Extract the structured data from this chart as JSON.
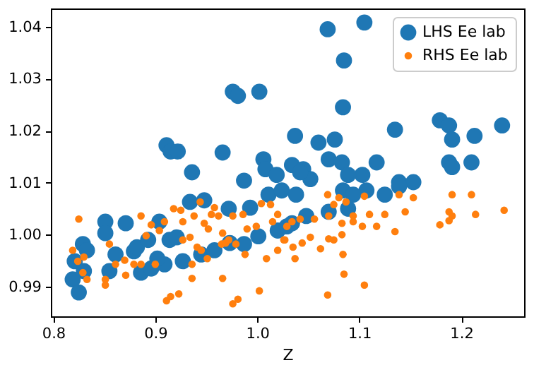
{
  "chart_data": {
    "type": "scatter",
    "xlabel": "Z",
    "xlim": [
      0.7976,
      1.2616
    ],
    "ylim": [
      0.9843,
      1.0435
    ],
    "xticks": [
      0.8,
      0.9,
      {
        "value": 1.0,
        "label": "1.0"
      },
      1.1,
      1.2
    ],
    "yticks": [
      0.99,
      {
        "value": 1.0,
        "label": "1.00"
      },
      1.01,
      1.02,
      1.03,
      1.04
    ],
    "legend": "top right",
    "marker": "circle",
    "grid": false,
    "series": [
      {
        "name": "LHS Ee lab",
        "color": "#1f77b4",
        "x": [
          1.069,
          1.105,
          1.085,
          0.976,
          0.981,
          1.002,
          1.084,
          0.911,
          0.915,
          0.922,
          0.936,
          0.966,
          0.987,
          1.006,
          1.008,
          1.019,
          1.037,
          1.06,
          1.076,
          1.07,
          1.083,
          1.135,
          1.179,
          1.188,
          1.191,
          1.213,
          1.24,
          1.188,
          1.191,
          1.21,
          1.117,
          1.103,
          1.089,
          1.034,
          1.045,
          1.052,
          1.139,
          1.153,
          0.948,
          0.934,
          0.972,
          0.993,
          1.011,
          1.024,
          0.851,
          0.851,
          0.871,
          0.904,
          0.914,
          0.921,
          0.829,
          0.833,
          0.821,
          0.83,
          0.819,
          0.825,
          0.855,
          0.861,
          0.879,
          0.886,
          0.896,
          0.909,
          0.927,
          0.945,
          0.958,
          0.973,
          0.987,
          1.001,
          1.02,
          1.029,
          0.902,
          0.882,
          0.893,
          1.038,
          1.084,
          1.107,
          1.125,
          1.139,
          1.07,
          1.089,
          1.048,
          1.034,
          1.094,
          1.042
        ],
        "values": [
          1.0395,
          1.0408,
          1.0335,
          1.0275,
          1.0267,
          1.0275,
          1.0245,
          1.0172,
          1.016,
          1.016,
          1.012,
          1.0158,
          1.0104,
          1.0145,
          1.0126,
          1.0115,
          1.019,
          1.0177,
          1.0183,
          1.0145,
          1.0139,
          1.0202,
          1.022,
          1.021,
          1.0183,
          1.019,
          1.021,
          1.0139,
          1.013,
          1.0139,
          1.0139,
          1.0115,
          1.0115,
          1.0134,
          1.0126,
          1.0107,
          1.0101,
          1.0101,
          1.0066,
          1.0063,
          1.005,
          1.0052,
          1.0077,
          1.0085,
          1.0025,
          1.0003,
          1.0022,
          1.0025,
          0.999,
          0.9995,
          0.9982,
          0.997,
          0.9949,
          0.993,
          0.9914,
          0.9889,
          0.993,
          0.9962,
          0.9968,
          0.9927,
          0.9935,
          0.9943,
          0.9949,
          0.9962,
          0.997,
          0.9984,
          0.9982,
          0.9997,
          1.0008,
          1.0016,
          0.9954,
          0.9976,
          0.999,
          1.0077,
          1.0085,
          1.0085,
          1.0077,
          1.0093,
          1.0044,
          1.005,
          1.0036,
          1.0022,
          1.0077,
          1.012
        ]
      },
      {
        "name": "RHS Ee lab",
        "color": "#ff7f0e",
        "x": [
          0.825,
          0.819,
          0.824,
          0.83,
          0.829,
          0.833,
          0.851,
          0.851,
          0.855,
          0.861,
          0.871,
          0.87,
          0.886,
          0.879,
          0.886,
          0.891,
          0.896,
          0.9,
          0.904,
          0.909,
          0.911,
          0.915,
          0.923,
          0.918,
          0.925,
          0.927,
          0.927,
          0.934,
          0.936,
          0.936,
          0.938,
          0.944,
          0.948,
          0.952,
          0.941,
          0.945,
          0.951,
          0.955,
          0.958,
          0.962,
          0.966,
          0.969,
          0.966,
          0.976,
          0.981,
          0.976,
          0.979,
          0.986,
          0.988,
          0.99,
          0.999,
          1.002,
          1.004,
          1.009,
          1.013,
          1.015,
          1.02,
          1.02,
          1.026,
          1.029,
          0.972,
          0.965,
          1.069,
          1.08,
          1.087,
          1.105,
          1.139,
          1.153,
          1.191,
          1.21,
          1.242,
          1.214,
          1.188,
          1.191,
          1.188,
          1.179,
          1.145,
          1.125,
          1.135,
          1.117,
          1.11,
          1.103,
          1.094,
          1.083,
          1.07,
          1.075,
          1.07,
          1.062,
          1.083,
          1.084,
          1.085,
          1.105,
          1.069,
          1.052,
          1.044,
          1.035,
          1.037,
          1.027,
          1.056,
          1.042,
          1.034,
          1.094,
          1.075
        ],
        "values": [
          1.003,
          0.997,
          0.9949,
          0.9957,
          0.9927,
          0.9914,
          0.9914,
          0.9903,
          0.9982,
          0.9943,
          0.9922,
          0.9951,
          1.0036,
          0.9943,
          0.9943,
          0.9998,
          1.0019,
          0.9943,
          1.0008,
          1.0025,
          0.9873,
          0.9881,
          0.9886,
          1.005,
          1.0047,
          1.0025,
          0.999,
          0.9995,
          0.9916,
          0.9943,
          1.0036,
          1.0063,
          1.0022,
          1.0011,
          0.9976,
          0.997,
          0.9954,
          1.0039,
          1.0052,
          1.0036,
          1.0003,
          0.9984,
          0.9916,
          0.9867,
          0.9876,
          1.0036,
          0.9982,
          1.0039,
          0.9962,
          1.0011,
          1.0016,
          0.9892,
          1.006,
          0.9954,
          1.0058,
          1.0025,
          0.997,
          1.0039,
          0.999,
          1.0016,
          0.999,
          0.9982,
          1.0077,
          1.0071,
          1.0063,
          1.0074,
          1.0077,
          1.0071,
          1.0077,
          1.0077,
          1.0047,
          1.0039,
          1.0044,
          1.0036,
          1.0027,
          1.0019,
          1.0044,
          1.0039,
          1.0006,
          1.0016,
          1.0039,
          1.0016,
          1.0025,
          1.0022,
          1.0036,
          0.999,
          0.9992,
          0.9973,
          1.0,
          0.9962,
          0.9924,
          0.9903,
          0.9884,
          0.9995,
          0.9984,
          0.9976,
          0.9954,
          0.999,
          1.003,
          1.003,
          1.0025,
          1.0036,
          1.0058
        ]
      }
    ]
  }
}
